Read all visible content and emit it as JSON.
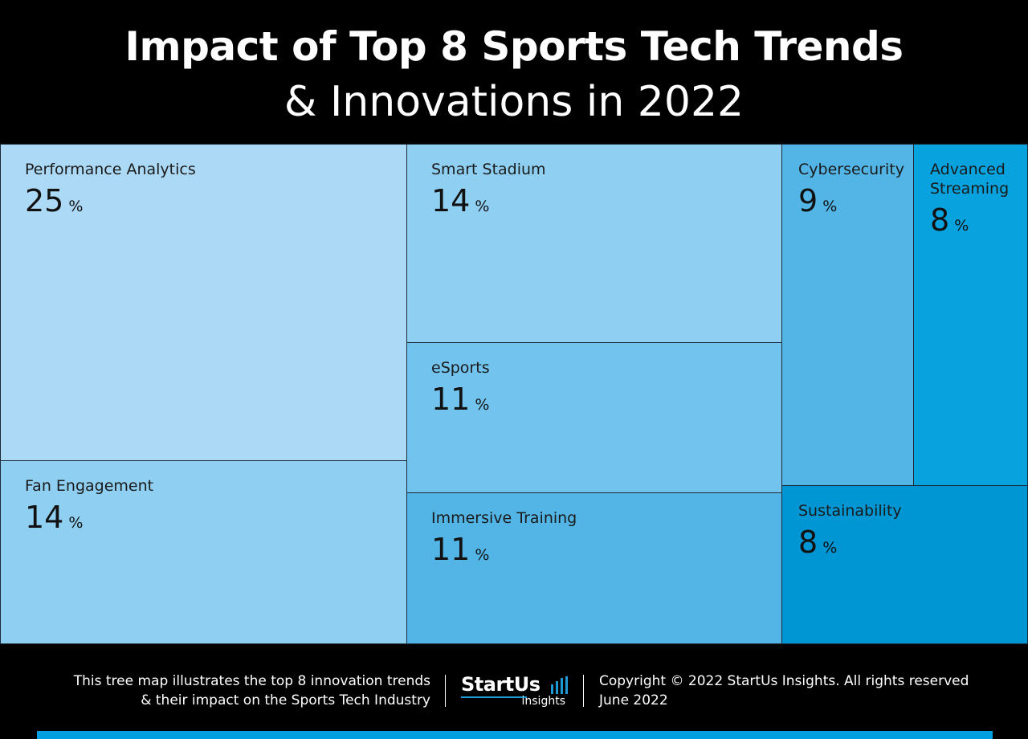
{
  "header": {
    "title_line1": "Impact of Top 8 Sports Tech Trends",
    "title_line2": "& Innovations in 2022"
  },
  "chart_data": {
    "type": "treemap",
    "unit": "%",
    "items": [
      {
        "name": "Performance Analytics",
        "value": 25,
        "color": "#acd9f5"
      },
      {
        "name": "Fan Engagement",
        "value": 14,
        "color": "#8fd0f2"
      },
      {
        "name": "Smart Stadium",
        "value": 14,
        "color": "#8fd0f2"
      },
      {
        "name": "eSports",
        "value": 11,
        "color": "#72c4ee"
      },
      {
        "name": "Immersive Training",
        "value": 11,
        "color": "#52b5e6"
      },
      {
        "name": "Cybersecurity",
        "value": 9,
        "color": "#52b5e6"
      },
      {
        "name": "Advanced Streaming",
        "value": 8,
        "color": "#08a2de"
      },
      {
        "name": "Sustainability",
        "value": 8,
        "color": "#0096d4"
      }
    ]
  },
  "footer": {
    "description_line1": "This tree map illustrates the top 8 innovation trends",
    "description_line2": "& their impact on the Sports Tech Industry",
    "logo_main": "StartUs",
    "logo_sub": "insights",
    "copyright": "Copyright © 2022 StartUs Insights. All rights reserved",
    "date": "June 2022"
  },
  "colors": {
    "background": "#000000",
    "accent": "#00a0e0"
  }
}
